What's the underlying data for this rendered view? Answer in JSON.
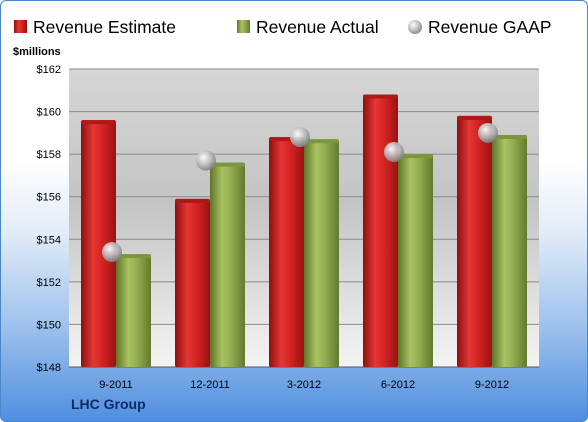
{
  "chart_data": {
    "type": "bar",
    "unit_label": "$millions",
    "company": "LHC Group",
    "categories": [
      "9-2011",
      "12-2011",
      "3-2012",
      "6-2012",
      "9-2012"
    ],
    "series": [
      {
        "name": "Revenue Estimate",
        "kind": "bar",
        "color": "#cc1f1f",
        "values": [
          159.6,
          155.9,
          158.8,
          160.8,
          159.8
        ]
      },
      {
        "name": "Revenue Actual",
        "kind": "bar",
        "color": "#8fa84a",
        "values": [
          153.3,
          157.6,
          158.7,
          158.0,
          158.9
        ]
      },
      {
        "name": "Revenue GAAP",
        "kind": "marker",
        "color": "#b8b8b8",
        "values": [
          153.4,
          157.7,
          158.8,
          158.1,
          159.0
        ]
      }
    ],
    "ylim": [
      148,
      162
    ],
    "yticks": [
      "$162",
      "$160",
      "$158",
      "$156",
      "$154",
      "$152",
      "$150",
      "$148"
    ],
    "ytick_values": [
      162,
      160,
      158,
      156,
      154,
      152,
      150,
      148
    ],
    "grid": true,
    "legend_position": "top"
  }
}
